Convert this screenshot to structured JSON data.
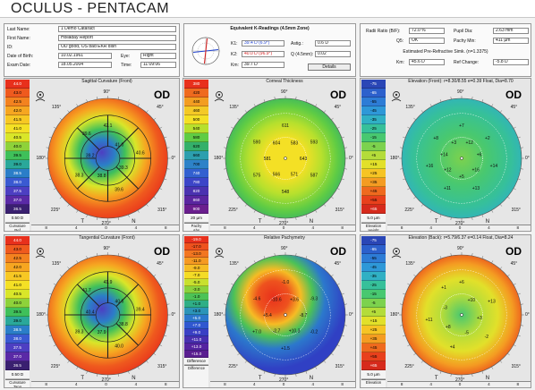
{
  "app": {
    "title": "OCULUS  -  PENTACAM"
  },
  "patient": {
    "last_name_label": "Last Name:",
    "last_name": "1 Demo Cataract",
    "first_name_label": "First Name:",
    "first_name": "Holladay Report",
    "id_label": "ID:",
    "id": "OD good, OS bad EKR dish",
    "dob_label": "Date of Birth:",
    "dob": "10.02.1961",
    "eye_label": "Eye:",
    "eye": "Right",
    "exam_date_label": "Exam Date:",
    "exam_date": "18.05.2004",
    "time_label": "Time:",
    "time": "11:09:06"
  },
  "kreadings": {
    "title": "Equivalent K-Readings (4.5mm Zone)",
    "k1_label": "K1:",
    "k1": "39.4 D  (6.9°)",
    "k2_label": "K2:",
    "k2": "40.0 D  (96.9°)",
    "km_label": "Km:",
    "km": "39.7 D",
    "astig_label": "Astig.:",
    "astig": "0.6 D",
    "q_label": "Q (4.5mm):",
    "q": "0.02",
    "details_button": "Details"
  },
  "refr": {
    "radii_ratio_label": "Radii Ratio (B/F):",
    "radii_ratio": "72.0 %",
    "pupil_dia_label": "Pupil Dia:",
    "pupil_dia": "2.63 mm",
    "q5_label": "Q5:",
    "q5": "OK",
    "pachy_min_label": "Pachy Min:",
    "pachy_min": "411 µm",
    "epr_title": "Estimated Pre-Refractive Simk. (n=1.3375)",
    "km_label": "Km:",
    "km": "45.6 D",
    "ref_change_label": "Ref Change:",
    "ref_change": "-5.8 D"
  },
  "maps": [
    {
      "title": "Sagittal Curvature (Front)",
      "od": "OD",
      "scale": [
        "44.0",
        "43.0",
        "42.5",
        "42.0",
        "41.5",
        "41.0",
        "40.5",
        "40.0",
        "39.5",
        "39.0",
        "38.5",
        "38.0",
        "37.5",
        "37.0",
        "36.5",
        "0.50 D"
      ],
      "scale_colors": [
        "#e8301c",
        "#ef5a1e",
        "#f3821f",
        "#f6a621",
        "#f7c824",
        "#f4e025",
        "#d9e629",
        "#8ed23a",
        "#3fc05a",
        "#2aa89a",
        "#2b7ec8",
        "#3a5ad2",
        "#4d3fc2",
        "#5a2aa6",
        "#3a2070",
        "#f4f4f4"
      ],
      "foot": [
        "Curvature",
        "Ref"
      ],
      "values": [
        "42.1",
        "41.0",
        "40.6",
        "39.3",
        "39.6",
        "38.8",
        "38.3",
        "39.2",
        "39.6"
      ],
      "axis_ticks": [
        "8",
        "4",
        "0",
        "4",
        "8"
      ],
      "angles": {
        "top": "90°",
        "left": "180°",
        "right": "0°",
        "bottom": "270°",
        "tl": "135°",
        "tr": "45°",
        "bl": "225°",
        "br": "315°"
      },
      "tn": {
        "t": "T",
        "n": "N"
      }
    },
    {
      "title": "Corneal Thickness",
      "od": "OD",
      "scale": [
        "380",
        "420",
        "440",
        "460",
        "500",
        "540",
        "580",
        "620",
        "660",
        "700",
        "740",
        "780",
        "820",
        "860",
        "900",
        "20 µm"
      ],
      "scale_colors": [
        "#e8301c",
        "#ef6a1e",
        "#f39d21",
        "#f4c926",
        "#f4e025",
        "#b7e02d",
        "#5fcc44",
        "#34b06a",
        "#2c9fae",
        "#2d82c8",
        "#3260d0",
        "#3c45c8",
        "#4a32b0",
        "#5a26a0",
        "#6a1e8e",
        "#f4f4f4"
      ],
      "foot": [
        "Pachy",
        "Abs"
      ],
      "values": [
        "611",
        "583",
        "593",
        "643",
        "587",
        "571",
        "548",
        "566",
        "575",
        "581",
        "590",
        "604"
      ],
      "axis_ticks": [
        "8",
        "4",
        "0",
        "4",
        "8"
      ],
      "angles": {
        "top": "90°",
        "left": "180°",
        "right": "0°",
        "bottom": "270°",
        "tl": "135°",
        "tr": "45°",
        "bl": "225°",
        "br": "315°"
      },
      "tn": {
        "t": "T",
        "n": "N"
      }
    },
    {
      "title": "Elevation (Front): r=8.30/8.55 e=0.39 Float, Dia=8.70",
      "od": "OD",
      "scale": [
        "-75",
        "-65",
        "-55",
        "-45",
        "-35",
        "-25",
        "-15",
        "-5",
        "+5",
        "+15",
        "+25",
        "+35",
        "+45",
        "+55",
        "+65",
        "5.0 µm"
      ],
      "scale_colors": [
        "#2a46b6",
        "#2c60cc",
        "#2d7cd6",
        "#2e98d8",
        "#30b0c4",
        "#36c09a",
        "#48c870",
        "#7cd24e",
        "#b4dc3a",
        "#e2e02a",
        "#f6c424",
        "#f49c22",
        "#ef6a1e",
        "#e8401c",
        "#d62a1c",
        "#f4f4f4"
      ],
      "foot": [
        "Elevation",
        "Height"
      ],
      "values": [
        "+7",
        "+12",
        "+2",
        "+6",
        "+14",
        "+16",
        "+13",
        "+5",
        "+11",
        "+12",
        "+16",
        "+14",
        "+8",
        "+3"
      ],
      "axis_ticks": [
        "8",
        "4",
        "0",
        "4",
        "8"
      ],
      "angles": {
        "top": "90°",
        "left": "180°",
        "right": "0°",
        "bottom": "270°",
        "tl": "135°",
        "tr": "45°",
        "bl": "225°",
        "br": "315°"
      },
      "tn": {
        "t": "T",
        "n": "N"
      }
    },
    {
      "title": "Tangential Curvature (Front)",
      "od": "OD",
      "scale": [
        "44.0",
        "43.0",
        "42.5",
        "42.0",
        "41.5",
        "41.0",
        "40.5",
        "40.0",
        "39.5",
        "39.0",
        "38.5",
        "38.0",
        "37.5",
        "37.0",
        "36.5",
        "0.50 D"
      ],
      "scale_colors": [
        "#e8301c",
        "#ef5a1e",
        "#f3821f",
        "#f6a621",
        "#f7c824",
        "#f4e025",
        "#d9e629",
        "#8ed23a",
        "#3fc05a",
        "#2aa89a",
        "#2b7ec8",
        "#3a5ad2",
        "#4d3fc2",
        "#5a2aa6",
        "#3a2070",
        "#f4f4f4"
      ],
      "foot": [
        "Curvature",
        "Tang"
      ],
      "values": [
        "41.9",
        "40.6",
        "39.4",
        "38.8",
        "40.0",
        "37.9",
        "39.3",
        "40.4",
        "41.7"
      ],
      "axis_ticks": [
        "8",
        "4",
        "0",
        "4",
        "8"
      ],
      "angles": {
        "top": "90°",
        "left": "180°",
        "right": "0°",
        "bottom": "270°",
        "tl": "135°",
        "tr": "45°",
        "bl": "225°",
        "br": "315°"
      },
      "tn": {
        "t": "T",
        "n": "N"
      }
    },
    {
      "title": "Relative Pachymetry",
      "od": "OD",
      "scale": [
        "-19.0",
        "-17.0",
        "-13.0",
        "-11.0",
        "-9.0",
        "-7.0",
        "-5.0",
        "-3.0",
        "-1.0",
        "+1.0",
        "+3.0",
        "+5.0",
        "+7.0",
        "+9.0",
        "+11.0",
        "+13.0",
        "+15.0",
        "Difference"
      ],
      "scale_colors": [
        "#e8301c",
        "#ee521e",
        "#f27620",
        "#f59a22",
        "#f6bc24",
        "#f4dc26",
        "#c8e02e",
        "#8ad23c",
        "#4cc256",
        "#2fae86",
        "#2c94b8",
        "#2c78cc",
        "#3058d0",
        "#3a40c4",
        "#4830b0",
        "#5424a0",
        "#5a1e90",
        "#f4f4f4"
      ],
      "foot": [
        "Difference",
        ""
      ],
      "values": [
        "-1.0",
        "+3.6",
        "-9.3",
        "-8.7",
        "-0.2",
        "+10.3",
        "+1.5",
        "-2.7",
        "+7.0",
        "+5.4",
        "-4.6",
        "-10.6"
      ],
      "axis_ticks": [
        "8",
        "4",
        "0",
        "4",
        "8"
      ],
      "angles": {
        "top": "90°",
        "left": "180°",
        "right": "0°",
        "bottom": "270°",
        "tl": "135°",
        "tr": "45°",
        "bl": "225°",
        "br": "315°"
      },
      "tn": {
        "t": "T",
        "n": "N"
      }
    },
    {
      "title": "Elevation (Back): r=5.79/6.37 e=0.14 Float, Dia=8.24",
      "od": "OD",
      "scale": [
        "-75",
        "-65",
        "-55",
        "-45",
        "-35",
        "-25",
        "-15",
        "-5",
        "+5",
        "+15",
        "+25",
        "+35",
        "+45",
        "+55",
        "+65",
        "5.0 µm"
      ],
      "scale_colors": [
        "#2a46b6",
        "#2c60cc",
        "#2d7cd6",
        "#2e98d8",
        "#30b0c4",
        "#36c09a",
        "#48c870",
        "#7cd24e",
        "#b4dc3a",
        "#e2e02a",
        "#f6c424",
        "#f49c22",
        "#ef6a1e",
        "#e8401c",
        "#d62a1c",
        "#f4f4f4"
      ],
      "foot": [
        "Elevation",
        ""
      ],
      "values": [
        "+6",
        "+10",
        "+13",
        "+3",
        "-2",
        "-5",
        "+4",
        "+8",
        "+11",
        "-3",
        "+1"
      ],
      "axis_ticks": [
        "8",
        "4",
        "0",
        "4",
        "8"
      ],
      "angles": {
        "top": "90°",
        "left": "180°",
        "right": "0°",
        "bottom": "270°",
        "tl": "135°",
        "tr": "45°",
        "bl": "225°",
        "br": "315°"
      },
      "tn": {
        "t": "T",
        "n": "N"
      }
    }
  ]
}
